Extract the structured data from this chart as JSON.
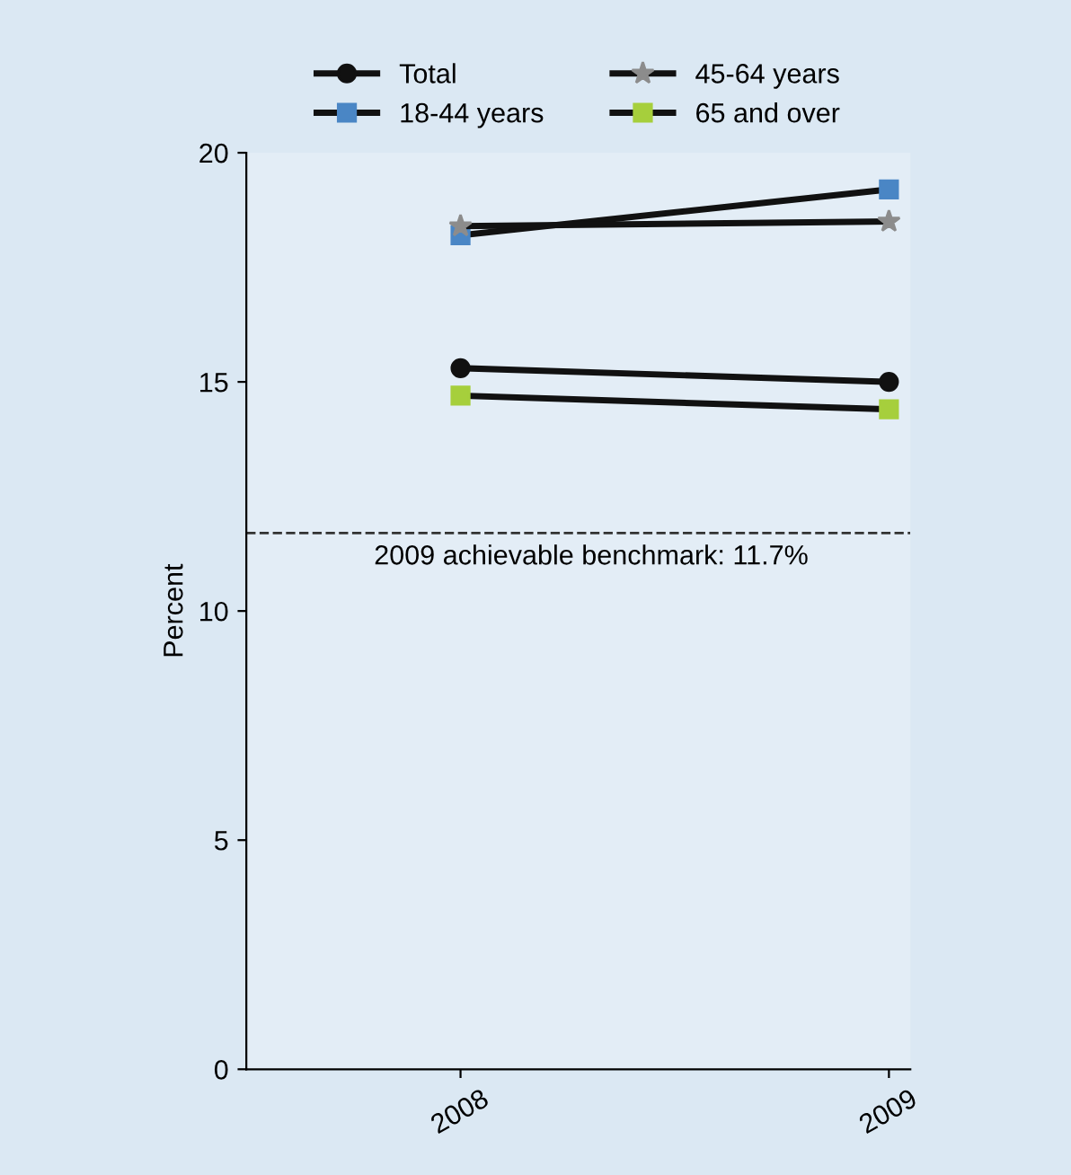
{
  "chart_data": {
    "type": "line",
    "ylabel": "Percent",
    "x": [
      2008,
      2009
    ],
    "xlim": [
      2007.5,
      2009.05
    ],
    "xticks": [
      2008,
      2009
    ],
    "ylim": [
      0,
      20
    ],
    "yticks": [
      0,
      5,
      10,
      15,
      20
    ],
    "series": [
      {
        "name": "Total",
        "color": "#111111",
        "marker": "circle",
        "values": [
          15.3,
          15.0
        ]
      },
      {
        "name": "18-44 years",
        "color": "#4a86c5",
        "marker": "square",
        "values": [
          18.2,
          19.2
        ]
      },
      {
        "name": "45-64 years",
        "color": "#8c8c8c",
        "marker": "star",
        "values": [
          18.4,
          18.5
        ]
      },
      {
        "name": "65 and over",
        "color": "#a6cf3c",
        "marker": "square",
        "values": [
          14.7,
          14.4
        ]
      }
    ],
    "ref_lines": [
      {
        "axis": "y",
        "value": 11.7,
        "label": "2009 achievable benchmark: 11.7%",
        "color": "#333333",
        "line_style": "dashed"
      }
    ],
    "legend": "top",
    "grid": false
  }
}
